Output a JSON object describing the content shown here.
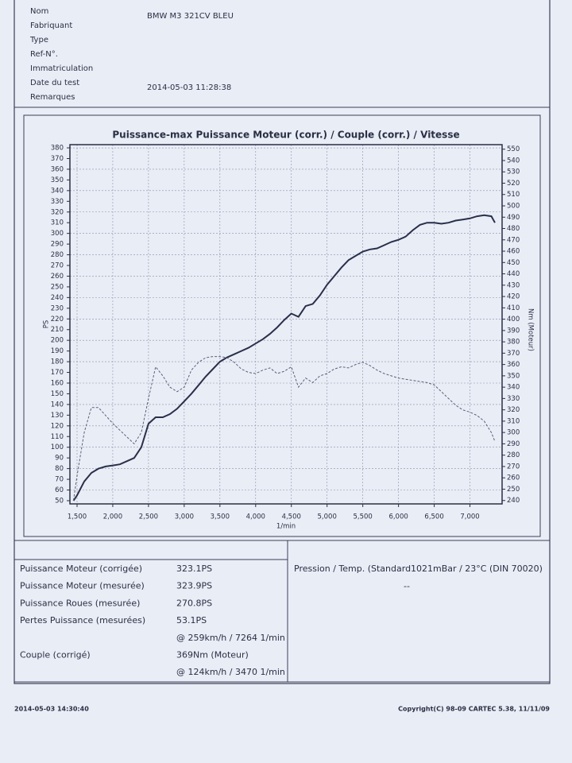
{
  "header": {
    "fields": [
      {
        "label": "Nom",
        "value": "BMW M3 321CV BLEU"
      },
      {
        "label": "Fabriquant"
      },
      {
        "label": "Type"
      },
      {
        "label": "Ref-N°."
      },
      {
        "label": "Immatriculation"
      },
      {
        "label": "Date du test",
        "value": "2014-05-03 11:28:38"
      },
      {
        "label": "Remarques"
      }
    ]
  },
  "chart_data": {
    "type": "line",
    "title": "Puissance-max Puissance Moteur (corr.) / Couple (corr.) / Vitesse",
    "xlabel": "1/min",
    "ylabel": "PS",
    "y2label": "Nm (Moteur)",
    "x": [
      1450,
      1500,
      1600,
      1700,
      1800,
      1900,
      2000,
      2100,
      2200,
      2300,
      2400,
      2500,
      2600,
      2700,
      2800,
      2900,
      3000,
      3100,
      3200,
      3300,
      3400,
      3500,
      3600,
      3700,
      3800,
      3900,
      4000,
      4100,
      4200,
      4300,
      4400,
      4500,
      4600,
      4700,
      4800,
      4900,
      5000,
      5100,
      5200,
      5300,
      5400,
      5500,
      5600,
      5700,
      5800,
      5900,
      6000,
      6100,
      6200,
      6300,
      6400,
      6500,
      6600,
      6700,
      6800,
      6900,
      7000,
      7100,
      7200,
      7300,
      7350
    ],
    "series": [
      {
        "color": "#2a2f4a",
        "values": [
          50,
          55,
          68,
          76,
          80,
          82,
          83,
          84,
          87,
          90,
          100,
          122,
          128,
          128,
          131,
          136,
          143,
          150,
          158,
          166,
          173,
          180,
          184,
          187,
          190,
          193,
          197,
          201,
          206,
          212,
          219,
          225,
          222,
          232,
          234,
          242,
          252,
          260,
          268,
          275,
          279,
          283,
          285,
          286,
          289,
          292,
          294,
          297,
          303,
          308,
          310,
          310,
          309,
          310,
          312,
          313,
          314,
          316,
          317,
          316,
          310
        ]
      },
      {
        "color": "#5a6078",
        "dashed": true,
        "axis": "y2",
        "values": [
          240,
          262,
          300,
          322,
          322,
          315,
          308,
          302,
          296,
          290,
          300,
          330,
          358,
          350,
          340,
          336,
          340,
          355,
          362,
          366,
          367,
          367,
          366,
          362,
          356,
          353,
          352,
          355,
          357,
          352,
          354,
          358,
          340,
          348,
          344,
          350,
          352,
          356,
          358,
          357,
          360,
          362,
          359,
          355,
          352,
          350,
          348,
          347,
          346,
          345,
          344,
          342,
          336,
          330,
          324,
          320,
          318,
          315,
          310,
          300,
          292
        ]
      }
    ],
    "xlim": [
      1400,
      7450
    ],
    "xticks": [
      {
        "value": 1500,
        "label": "1,500"
      },
      {
        "value": 2000,
        "label": "2,000"
      },
      {
        "value": 2500,
        "label": "2,500"
      },
      {
        "value": 3000,
        "label": "3,000"
      },
      {
        "value": 3500,
        "label": "3,500"
      },
      {
        "value": 4000,
        "label": "4,000"
      },
      {
        "value": 4500,
        "label": "4,500"
      },
      {
        "value": 5000,
        "label": "5,000"
      },
      {
        "value": 5500,
        "label": "5,500"
      },
      {
        "value": 6000,
        "label": "6,000"
      },
      {
        "value": 6500,
        "label": "6,500"
      },
      {
        "value": 7000,
        "label": "7,000"
      }
    ],
    "ylim": [
      47,
      383
    ],
    "yticks": [
      50,
      60,
      70,
      80,
      90,
      100,
      110,
      120,
      130,
      140,
      150,
      160,
      170,
      180,
      190,
      200,
      210,
      220,
      230,
      240,
      250,
      260,
      270,
      280,
      290,
      300,
      310,
      320,
      330,
      340,
      350,
      360,
      370,
      380
    ],
    "y2lim": [
      237,
      554
    ],
    "y2ticks": [
      240,
      250,
      260,
      270,
      280,
      290,
      300,
      310,
      320,
      330,
      340,
      350,
      360,
      370,
      380,
      390,
      400,
      410,
      420,
      430,
      440,
      450,
      460,
      470,
      480,
      490,
      500,
      510,
      520,
      530,
      540,
      550
    ],
    "grid": true
  },
  "results": {
    "rows": [
      {
        "label": "Puissance Moteur (corrigée)",
        "value": "323.1PS"
      },
      {
        "label": "Puissance Moteur (mesurée)",
        "value": "323.9PS"
      },
      {
        "label": "Puissance Roues (mesurée)",
        "value": "270.8PS"
      },
      {
        "label": "Pertes Puissance (mesurées)",
        "value": "53.1PS"
      },
      {
        "value": "@ 259km/h / 7264 1/min"
      },
      {
        "label": "Couple (corrigé)",
        "value": "369Nm (Moteur)"
      },
      {
        "value": "@ 124km/h / 3470 1/min"
      }
    ],
    "conditions": "Pression / Temp. (Standard1021mBar / 23°C  (DIN 70020)",
    "conditions_value": "--"
  },
  "footer": {
    "left": "2014-05-03 14:30:40",
    "right": "Copyright(C) 98-09 CARTEC 5.38, 11/11/09"
  }
}
